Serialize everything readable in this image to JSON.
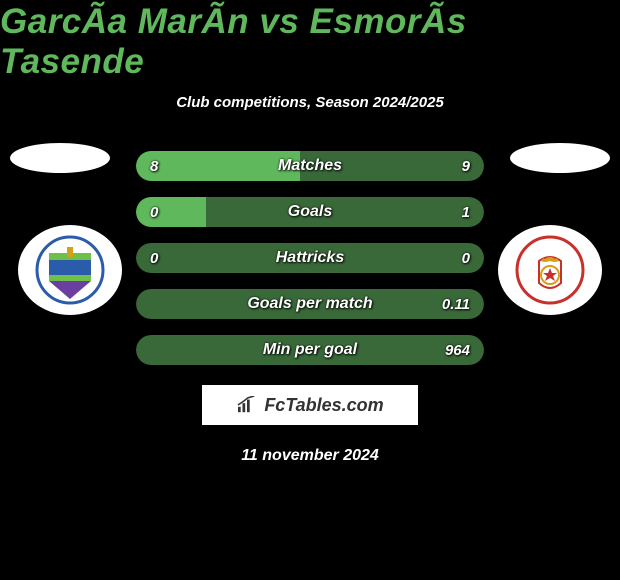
{
  "title": "GarcÃa MarÃn vs EsmorÃs Tasende",
  "subtitle": "Club competitions, Season 2024/2025",
  "date": "11 november 2024",
  "brand": "FcTables.com",
  "colors": {
    "title": "#5fb85c",
    "text": "#ffffff",
    "bar_base": "#396939",
    "bar_fill": "#5fb85c",
    "bg": "#000000",
    "brand_bg": "#ffffff",
    "brand_text": "#333333"
  },
  "stats": [
    {
      "label": "Matches",
      "left_val": "8",
      "right_val": "9",
      "left_pct": 47,
      "right_pct": 53
    },
    {
      "label": "Goals",
      "left_val": "0",
      "right_val": "1",
      "left_pct": 20,
      "right_pct": 80
    },
    {
      "label": "Hattricks",
      "left_val": "0",
      "right_val": "0",
      "left_pct": 0,
      "right_pct": 0
    },
    {
      "label": "Goals per match",
      "left_val": "",
      "right_val": "0.11",
      "left_pct": 0,
      "right_pct": 100
    },
    {
      "label": "Min per goal",
      "left_val": "",
      "right_val": "964",
      "left_pct": 0,
      "right_pct": 100
    }
  ],
  "left_player": {
    "photo_placeholder": "oval",
    "club": "Malaga CF"
  },
  "right_player": {
    "photo_placeholder": "oval",
    "club": "Real Zaragoza"
  }
}
